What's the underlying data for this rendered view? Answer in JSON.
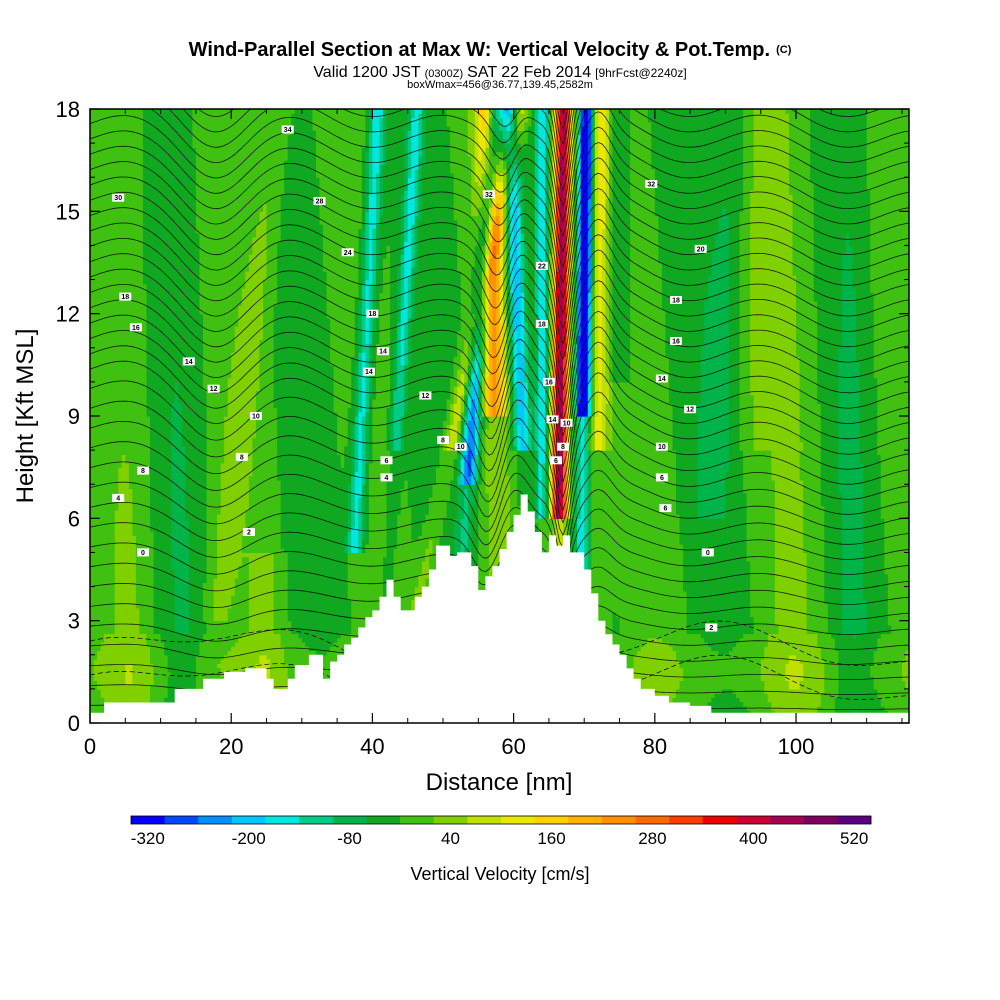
{
  "header": {
    "title_main": "Wind-Parallel Section at Max W: Vertical Velocity & Pot.Temp.",
    "title_copyright": "(C)",
    "valid_prefix": "Valid 1200 JST",
    "valid_utc": "(0300Z)",
    "valid_date": "SAT 22 Feb 2014",
    "forecast": "[9hrFcst@2240z]",
    "boxwmax": "boxWmax=456@36.77,139.45,2582m"
  },
  "chart_data": {
    "type": "heatmap",
    "xlabel": "Distance [nm]",
    "ylabel": "Height [Kft MSL]",
    "xlim": [
      0,
      116
    ],
    "ylim": [
      0,
      18
    ],
    "xticks": [
      0,
      20,
      40,
      60,
      80,
      100
    ],
    "yticks": [
      0,
      3,
      6,
      9,
      12,
      15,
      18
    ],
    "colorbar": {
      "label": "Vertical Velocity [cm/s]",
      "tick_labels": [
        "-320",
        "-200",
        "-80",
        "40",
        "160",
        "280",
        "400",
        "520"
      ],
      "tick_values": [
        -320,
        -200,
        -80,
        40,
        160,
        280,
        400,
        520
      ],
      "levels_min": -320,
      "levels_step": 40,
      "colors": [
        "#0000ff",
        "#0048ff",
        "#0090ff",
        "#00c8ff",
        "#00e6e0",
        "#00cc88",
        "#00b44a",
        "#10a820",
        "#40c010",
        "#80d000",
        "#c0e000",
        "#e8e800",
        "#ffd000",
        "#ffb000",
        "#ff9000",
        "#ff6a00",
        "#ff3c00",
        "#ee0000",
        "#cc0033",
        "#a60050",
        "#800060",
        "#5a0080"
      ]
    },
    "terrain": {
      "description": "terrain profile height in Kft",
      "x": [
        0,
        2,
        2,
        12,
        12,
        16,
        16,
        19,
        19,
        22,
        22,
        25,
        25,
        26,
        26,
        28,
        28,
        29,
        29,
        31,
        31,
        33,
        33,
        34,
        34,
        35,
        35,
        36,
        36,
        37,
        37,
        38,
        38,
        39,
        39,
        40,
        40,
        41,
        41,
        42,
        42,
        43,
        43,
        44,
        44,
        46,
        46,
        47,
        47,
        48,
        48,
        49,
        49,
        51,
        51,
        52,
        52,
        54,
        54,
        55,
        55,
        56,
        56,
        57,
        57,
        58,
        58,
        59,
        59,
        60,
        60,
        61,
        61,
        62,
        62,
        63,
        63,
        64,
        64,
        65,
        65,
        66,
        66,
        67,
        67,
        68,
        68,
        70,
        70,
        71,
        71,
        72,
        72,
        73,
        73,
        74,
        74,
        75,
        75,
        76,
        76,
        77,
        77,
        78,
        78,
        80,
        80,
        82,
        82,
        85,
        85,
        88,
        88,
        90,
        90,
        116
      ],
      "y": [
        0.3,
        0.3,
        0.6,
        0.6,
        1.0,
        1.0,
        1.3,
        1.3,
        1.5,
        1.5,
        1.6,
        1.6,
        1.3,
        1.3,
        1.0,
        1.0,
        1.3,
        1.3,
        1.7,
        1.7,
        2.0,
        2.0,
        1.3,
        1.3,
        1.8,
        1.8,
        2.0,
        2.0,
        2.3,
        2.3,
        2.5,
        2.5,
        2.8,
        2.8,
        3.1,
        3.1,
        3.3,
        3.3,
        3.7,
        3.7,
        4.2,
        4.2,
        3.7,
        3.7,
        3.3,
        3.3,
        3.7,
        3.7,
        4.0,
        4.0,
        4.5,
        4.5,
        5.2,
        5.2,
        4.9,
        4.9,
        5.0,
        5.0,
        4.6,
        4.6,
        3.9,
        3.9,
        4.3,
        4.3,
        4.6,
        4.6,
        5.1,
        5.1,
        5.6,
        5.6,
        6.1,
        6.1,
        6.7,
        6.7,
        6.2,
        6.2,
        5.6,
        5.6,
        5.0,
        5.0,
        5.5,
        5.5,
        5.2,
        5.2,
        5.5,
        5.5,
        5.0,
        5.0,
        4.5,
        4.5,
        3.8,
        3.8,
        3.0,
        3.0,
        2.6,
        2.6,
        2.3,
        2.3,
        2.0,
        2.0,
        1.6,
        1.6,
        1.3,
        1.3,
        1.0,
        1.0,
        0.8,
        0.8,
        0.6,
        0.6,
        0.5,
        0.5,
        0.3,
        0.3,
        0.3,
        0.3
      ]
    },
    "contour_labels": [
      {
        "x": 28.0,
        "y": 17.4,
        "text": "34"
      },
      {
        "x": 4.0,
        "y": 15.4,
        "text": "30"
      },
      {
        "x": 32.5,
        "y": 15.3,
        "text": "28"
      },
      {
        "x": 79.5,
        "y": 15.8,
        "text": "32"
      },
      {
        "x": 56.5,
        "y": 15.5,
        "text": "32"
      },
      {
        "x": 36.5,
        "y": 13.8,
        "text": "24"
      },
      {
        "x": 86.5,
        "y": 13.9,
        "text": "20"
      },
      {
        "x": 64.0,
        "y": 13.4,
        "text": "22"
      },
      {
        "x": 5.0,
        "y": 12.5,
        "text": "18"
      },
      {
        "x": 83.0,
        "y": 12.4,
        "text": "18"
      },
      {
        "x": 40.0,
        "y": 12.0,
        "text": "18"
      },
      {
        "x": 6.5,
        "y": 11.6,
        "text": "16"
      },
      {
        "x": 64.0,
        "y": 11.7,
        "text": "18"
      },
      {
        "x": 83.0,
        "y": 11.2,
        "text": "16"
      },
      {
        "x": 41.5,
        "y": 10.9,
        "text": "14"
      },
      {
        "x": 14.0,
        "y": 10.6,
        "text": "14"
      },
      {
        "x": 39.5,
        "y": 10.3,
        "text": "14"
      },
      {
        "x": 65.0,
        "y": 10.0,
        "text": "16"
      },
      {
        "x": 81.0,
        "y": 10.1,
        "text": "14"
      },
      {
        "x": 17.5,
        "y": 9.8,
        "text": "12"
      },
      {
        "x": 47.5,
        "y": 9.6,
        "text": "12"
      },
      {
        "x": 85.0,
        "y": 9.2,
        "text": "12"
      },
      {
        "x": 23.5,
        "y": 9.0,
        "text": "10"
      },
      {
        "x": 65.5,
        "y": 8.9,
        "text": "14"
      },
      {
        "x": 67.5,
        "y": 8.8,
        "text": "10"
      },
      {
        "x": 50.0,
        "y": 8.3,
        "text": "8"
      },
      {
        "x": 52.5,
        "y": 8.1,
        "text": "10"
      },
      {
        "x": 67.0,
        "y": 8.1,
        "text": "8"
      },
      {
        "x": 81.0,
        "y": 8.1,
        "text": "10"
      },
      {
        "x": 21.5,
        "y": 7.8,
        "text": "8"
      },
      {
        "x": 42.0,
        "y": 7.7,
        "text": "6"
      },
      {
        "x": 66.0,
        "y": 7.7,
        "text": "6"
      },
      {
        "x": 7.5,
        "y": 7.4,
        "text": "8"
      },
      {
        "x": 42.0,
        "y": 7.2,
        "text": "4"
      },
      {
        "x": 81.0,
        "y": 7.2,
        "text": "6"
      },
      {
        "x": 4.0,
        "y": 6.6,
        "text": "4"
      },
      {
        "x": 81.5,
        "y": 6.3,
        "text": "6"
      },
      {
        "x": 22.5,
        "y": 5.6,
        "text": "2"
      },
      {
        "x": 7.5,
        "y": 5.0,
        "text": "0"
      },
      {
        "x": 87.5,
        "y": 5.0,
        "text": "0"
      },
      {
        "x": 88.0,
        "y": 2.8,
        "text": "2"
      }
    ]
  }
}
